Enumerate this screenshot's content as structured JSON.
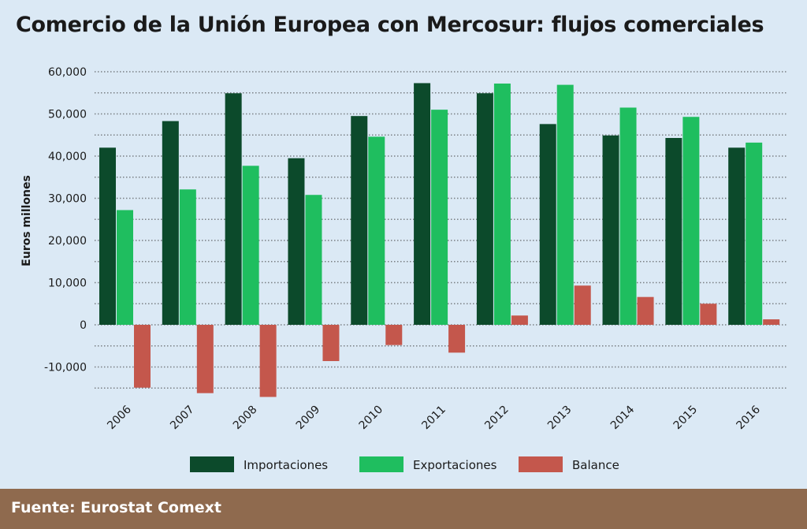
{
  "title": "Comercio de la Unión Europea con Mercosur: flujos comerciales",
  "source": "Fuente: Eurostat Comext",
  "chart_data": {
    "type": "bar",
    "title": "Comercio de la Unión Europea con Mercosur: flujos comerciales",
    "xlabel": "",
    "ylabel": "Euros millones",
    "ylim": [
      -15000,
      60000
    ],
    "yticks": [
      60000,
      50000,
      40000,
      30000,
      20000,
      10000,
      0,
      -10000
    ],
    "ytick_labels": [
      "60,000",
      "50,000",
      "40,000",
      "30,000",
      "20,000",
      "10,000",
      "0",
      "-10,000"
    ],
    "grid": true,
    "legend_position": "bottom",
    "categories": [
      "2006",
      "2007",
      "2008",
      "2009",
      "2010",
      "2011",
      "2012",
      "2013",
      "2014",
      "2015",
      "2016"
    ],
    "series": [
      {
        "name": "Importaciones",
        "color": "#0c4a2b",
        "values": [
          42000,
          48300,
          54900,
          39500,
          49500,
          57300,
          54900,
          47600,
          44900,
          44300,
          42000
        ]
      },
      {
        "name": "Exportaciones",
        "color": "#1fbe5f",
        "values": [
          27200,
          32100,
          37700,
          30800,
          44600,
          51000,
          57200,
          56900,
          51500,
          49300,
          43200
        ]
      },
      {
        "name": "Balance",
        "color": "#c4574c",
        "values": [
          -14900,
          -16200,
          -17100,
          -8600,
          -4800,
          -6600,
          2200,
          9300,
          6600,
          5000,
          1300
        ]
      }
    ]
  }
}
